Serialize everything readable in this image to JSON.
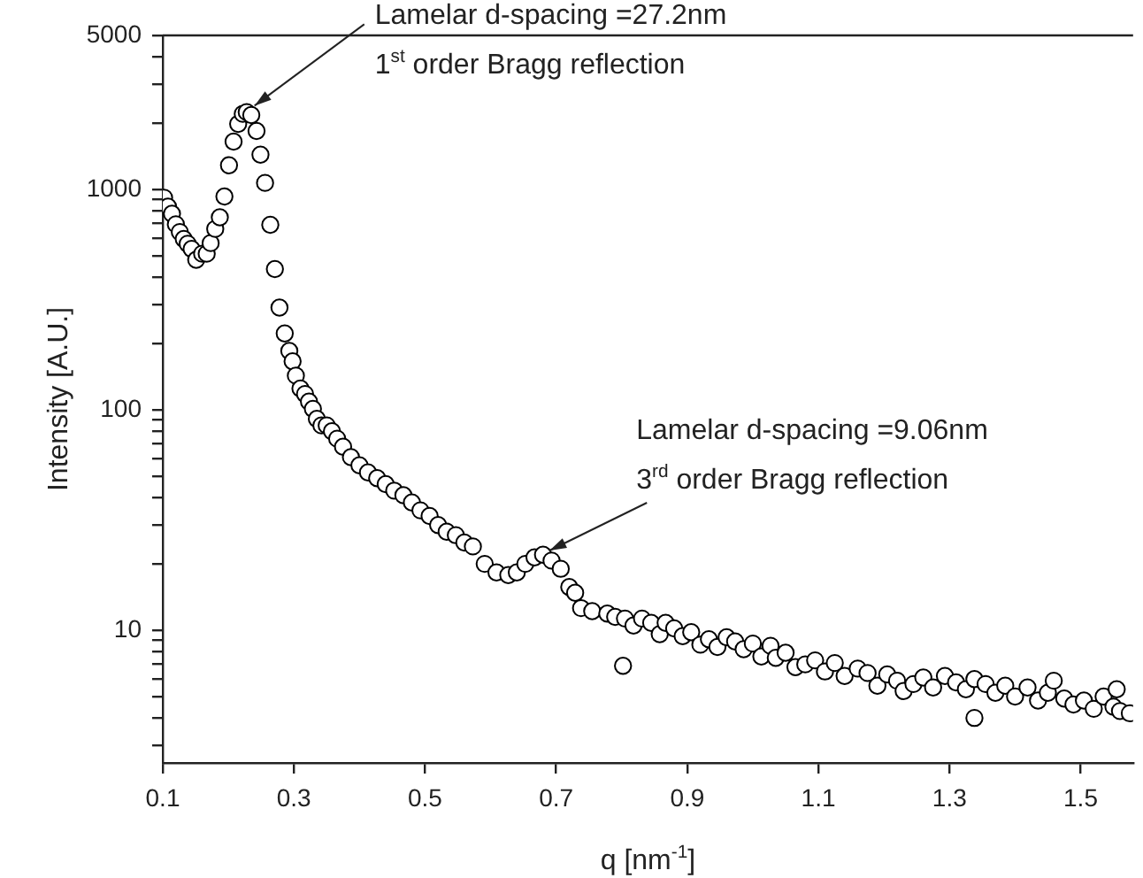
{
  "chart_data": {
    "type": "scatter",
    "xlabel": "q [nm$^{-1}$]",
    "ylabel": "Intensity [A.U.]",
    "log": "y",
    "grid": false,
    "marker": "circle",
    "legend": false,
    "xlim": [
      0.1,
      1.58
    ],
    "xticks": [
      0.1,
      0.3,
      0.5,
      0.7,
      0.9,
      1.1,
      1.3,
      1.5
    ],
    "ylim": [
      2.5,
      5000
    ],
    "yticks": [
      {
        "value": 3,
        "label": null
      },
      {
        "value": 4,
        "label": null
      },
      {
        "value": 5,
        "label": null
      },
      {
        "value": 6,
        "label": null
      },
      {
        "value": 7,
        "label": null
      },
      {
        "value": 8,
        "label": null
      },
      {
        "value": 9,
        "label": null
      },
      10,
      {
        "value": 20,
        "label": null
      },
      {
        "value": 30,
        "label": null
      },
      {
        "value": 40,
        "label": null
      },
      {
        "value": 50,
        "label": null
      },
      {
        "value": 60,
        "label": null
      },
      {
        "value": 70,
        "label": null
      },
      {
        "value": 80,
        "label": null
      },
      {
        "value": 90,
        "label": null
      },
      100,
      {
        "value": 2000,
        "label": null
      },
      {
        "value": 3000,
        "label": null
      },
      {
        "value": 4000,
        "label": null
      },
      {
        "value": 200,
        "label": null
      },
      {
        "value": 300,
        "label": null
      },
      {
        "value": 400,
        "label": null
      },
      {
        "value": 500,
        "label": null
      },
      {
        "value": 600,
        "label": null
      },
      {
        "value": 700,
        "label": null
      },
      {
        "value": 800,
        "label": null
      },
      {
        "value": 900,
        "label": null
      },
      1000,
      5000
    ],
    "annotations": [
      {
        "text": "Lamelar d-spacing =27.2nm\n1$^{st}$ order Bragg reflection",
        "x": 0.24,
        "y": 2400
      },
      {
        "text": "Lamelar d-spacing =9.06nm\n3$^{rd}$ order Bragg reflection",
        "x": 0.69,
        "y": 23
      }
    ],
    "series": [
      {
        "color": "#000000",
        "x": [
          0.102,
          0.108,
          0.114,
          0.12,
          0.126,
          0.132,
          0.138,
          0.144,
          0.151,
          0.16,
          0.167,
          0.173,
          0.18,
          0.187,
          0.194,
          0.201,
          0.208,
          0.215,
          0.222,
          0.228,
          0.235,
          0.243,
          0.249,
          0.256,
          0.264,
          0.271,
          0.278,
          0.286,
          0.293,
          0.298,
          0.303,
          0.31,
          0.317,
          0.323,
          0.329,
          0.335,
          0.342,
          0.35,
          0.358,
          0.366,
          0.375,
          0.387,
          0.4,
          0.413,
          0.427,
          0.44,
          0.453,
          0.467,
          0.48,
          0.493,
          0.507,
          0.52,
          0.533,
          0.547,
          0.56,
          0.573,
          0.591,
          0.609,
          0.627,
          0.64,
          0.653,
          0.667,
          0.68,
          0.693,
          0.707,
          0.72,
          0.729,
          0.738,
          0.755,
          0.778,
          0.79,
          0.802,
          0.805,
          0.818,
          0.831,
          0.845,
          0.858,
          0.867,
          0.88,
          0.893,
          0.906,
          0.92,
          0.933,
          0.946,
          0.96,
          0.973,
          0.986,
          1.0,
          1.013,
          1.027,
          1.035,
          1.05,
          1.065,
          1.08,
          1.095,
          1.11,
          1.125,
          1.14,
          1.16,
          1.175,
          1.19,
          1.205,
          1.22,
          1.23,
          1.245,
          1.26,
          1.275,
          1.293,
          1.31,
          1.325,
          1.338,
          1.338,
          1.355,
          1.37,
          1.385,
          1.4,
          1.419,
          1.435,
          1.45,
          1.459,
          1.475,
          1.489,
          1.505,
          1.52,
          1.535,
          1.55,
          1.555,
          1.56,
          1.575
        ],
        "values": [
          917,
          836,
          776,
          695,
          641,
          596,
          567,
          537,
          480,
          511,
          511,
          571,
          662,
          748,
          929,
          1288,
          1648,
          1982,
          2203,
          2244,
          2174,
          1841,
          1439,
          1071,
          691,
          435,
          291,
          222,
          185,
          166,
          143,
          125,
          118,
          109,
          101,
          91,
          85,
          85,
          80,
          74,
          68,
          61,
          56,
          52,
          49,
          46,
          43,
          41,
          38,
          35,
          33,
          30,
          28,
          27,
          25,
          24,
          20,
          18.3,
          17.8,
          18.3,
          20,
          21.4,
          22,
          20.7,
          19,
          15.7,
          14.8,
          12.6,
          12.2,
          11.9,
          11.5,
          6.9,
          11.3,
          10.5,
          11.3,
          10.8,
          9.6,
          10.8,
          10.2,
          9.4,
          9.8,
          8.6,
          9.1,
          8.4,
          9.3,
          8.9,
          8.2,
          8.7,
          7.6,
          8.5,
          7.5,
          7.9,
          6.8,
          7.0,
          7.3,
          6.5,
          7.1,
          6.2,
          6.7,
          6.4,
          5.6,
          6.3,
          5.9,
          5.3,
          5.7,
          6.1,
          5.5,
          6.2,
          5.8,
          5.4,
          6.0,
          4.0,
          5.7,
          5.2,
          5.6,
          5.0,
          5.5,
          4.8,
          5.2,
          5.9,
          4.9,
          4.6,
          4.8,
          4.4,
          5.0,
          4.5,
          5.4,
          4.3,
          4.2
        ]
      }
    ]
  }
}
